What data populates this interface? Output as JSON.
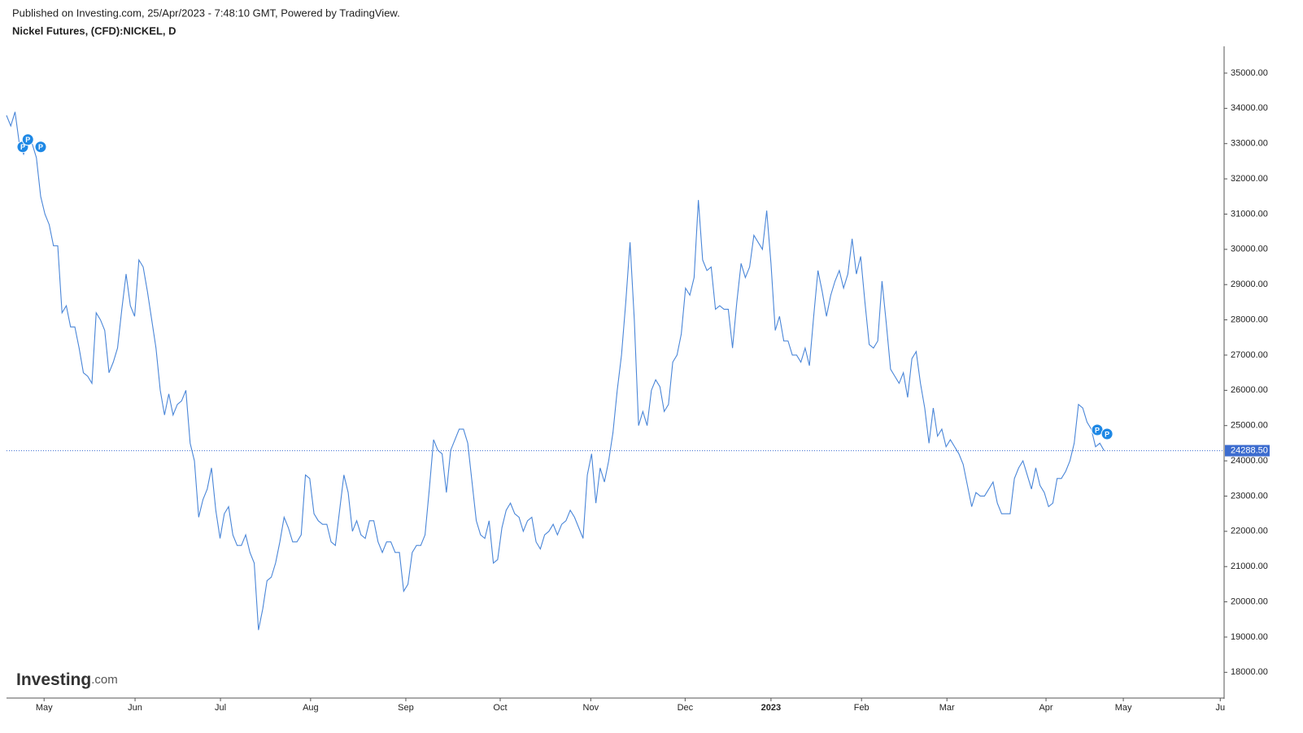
{
  "chart_data": {
    "type": "line",
    "published": "Published on Investing.com, 25/Apr/2023 - 7:48:10 GMT, Powered by TradingView.",
    "title": "Nickel Futures, (CFD):NICKEL, D",
    "logo": [
      "Investing",
      ".com"
    ],
    "series": [
      {
        "name": "NICKEL",
        "color": "#4a86d8",
        "values": [
          33800,
          33500,
          33900,
          33000,
          32700,
          33100,
          33000,
          32600,
          31500,
          31000,
          30700,
          30100,
          30100,
          28200,
          28400,
          27800,
          27800,
          27200,
          26500,
          26400,
          26200,
          28200,
          28000,
          27700,
          26500,
          26800,
          27200,
          28300,
          29300,
          28400,
          28100,
          29700,
          29500,
          28800,
          28000,
          27200,
          26000,
          25300,
          25900,
          25300,
          25600,
          25700,
          26000,
          24500,
          24000,
          22400,
          22900,
          23200,
          23800,
          22600,
          21800,
          22500,
          22700,
          21900,
          21600,
          21600,
          21900,
          21400,
          21100,
          19200,
          19800,
          20600,
          20700,
          21100,
          21700,
          22400,
          22100,
          21700,
          21700,
          21900,
          23600,
          23500,
          22500,
          22300,
          22200,
          22200,
          21700,
          21600,
          22600,
          23600,
          23100,
          22000,
          22300,
          21900,
          21800,
          22300,
          22300,
          21700,
          21400,
          21700,
          21700,
          21400,
          21400,
          20300,
          20500,
          21400,
          21600,
          21600,
          21900,
          23200,
          24600,
          24300,
          24200,
          23100,
          24300,
          24600,
          24900,
          24900,
          24500,
          23400,
          22300,
          21900,
          21800,
          22300,
          21100,
          21200,
          22100,
          22600,
          22800,
          22500,
          22400,
          22000,
          22300,
          22400,
          21700,
          21500,
          21900,
          22000,
          22200,
          21900,
          22200,
          22300,
          22600,
          22400,
          22100,
          21800,
          23600,
          24200,
          22800,
          23800,
          23400,
          24000,
          24800,
          26000,
          27000,
          28500,
          30200,
          28000,
          25000,
          25400,
          25000,
          26000,
          26300,
          26100,
          25400,
          25600,
          26800,
          27000,
          27600,
          28900,
          28700,
          29200,
          31400,
          29700,
          29400,
          29500,
          28300,
          28400,
          28300,
          28300,
          27200,
          28500,
          29600,
          29200,
          29500,
          30400,
          30200,
          30000,
          31100,
          29600,
          27700,
          28100,
          27400,
          27400,
          27000,
          27000,
          26800,
          27200,
          26700,
          28100,
          29400,
          28800,
          28100,
          28700,
          29100,
          29400,
          28900,
          29300,
          30300,
          29300,
          29800,
          28500,
          27300,
          27200,
          27400,
          29100,
          27900,
          26600,
          26400,
          26200,
          26500,
          25800,
          26900,
          27100,
          26200,
          25500,
          24500,
          25500,
          24700,
          24900,
          24400,
          24600,
          24400,
          24200,
          23900,
          23300,
          22700,
          23100,
          23000,
          23000,
          23200,
          23400,
          22800,
          22500,
          22500,
          22500,
          23500,
          23800,
          24000,
          23600,
          23200,
          23800,
          23300,
          23100,
          22700,
          22800,
          23500,
          23500,
          23700,
          24000,
          24500,
          25600,
          25500,
          25100,
          24900,
          24400,
          24500,
          24288.5
        ]
      }
    ],
    "last_price": {
      "value": 24288.5,
      "label": "24288.50",
      "color": "#3c6ccf"
    },
    "markers": [
      {
        "x": 3.8,
        "y": 32907,
        "label": "P"
      },
      {
        "x": 5,
        "y": 33114,
        "label": "P"
      },
      {
        "x": 8,
        "y": 32907,
        "label": "P"
      },
      {
        "x": 255.4,
        "y": 24878,
        "label": "P"
      },
      {
        "x": 257.7,
        "y": 24763,
        "label": "P"
      }
    ],
    "xlim": [
      0,
      285.1
    ],
    "xticks": [
      {
        "value": 8.8,
        "label": "May"
      },
      {
        "value": 30.1,
        "label": "Jun"
      },
      {
        "value": 50.1,
        "label": "Jul"
      },
      {
        "value": 71.2,
        "label": "Aug"
      },
      {
        "value": 93.5,
        "label": "Sep"
      },
      {
        "value": 115.6,
        "label": "Oct"
      },
      {
        "value": 136.8,
        "label": "Nov"
      },
      {
        "value": 158.9,
        "label": "Dec"
      },
      {
        "value": 179,
        "label": "2023"
      },
      {
        "value": 200.2,
        "label": "Feb"
      },
      {
        "value": 220.2,
        "label": "Mar"
      },
      {
        "value": 243.4,
        "label": "Apr"
      },
      {
        "value": 261.5,
        "label": "May"
      },
      {
        "value": 284.2,
        "label": "Ju"
      }
    ],
    "ylim": [
      17270,
      35760
    ],
    "yticks": [
      {
        "value": 18000,
        "label": "18000.00"
      },
      {
        "value": 19000,
        "label": "19000.00"
      },
      {
        "value": 20000,
        "label": "20000.00"
      },
      {
        "value": 21000,
        "label": "21000.00"
      },
      {
        "value": 22000,
        "label": "22000.00"
      },
      {
        "value": 23000,
        "label": "23000.00"
      },
      {
        "value": 24000,
        "label": "24000.00"
      },
      {
        "value": 25000,
        "label": "25000.00"
      },
      {
        "value": 26000,
        "label": "26000.00"
      },
      {
        "value": 27000,
        "label": "27000.00"
      },
      {
        "value": 28000,
        "label": "28000.00"
      },
      {
        "value": 29000,
        "label": "29000.00"
      },
      {
        "value": 30000,
        "label": "30000.00"
      },
      {
        "value": 31000,
        "label": "31000.00"
      },
      {
        "value": 32000,
        "label": "32000.00"
      },
      {
        "value": 33000,
        "label": "33000.00"
      },
      {
        "value": 34000,
        "label": "34000.00"
      },
      {
        "value": 35000,
        "label": "35000.00"
      }
    ]
  }
}
